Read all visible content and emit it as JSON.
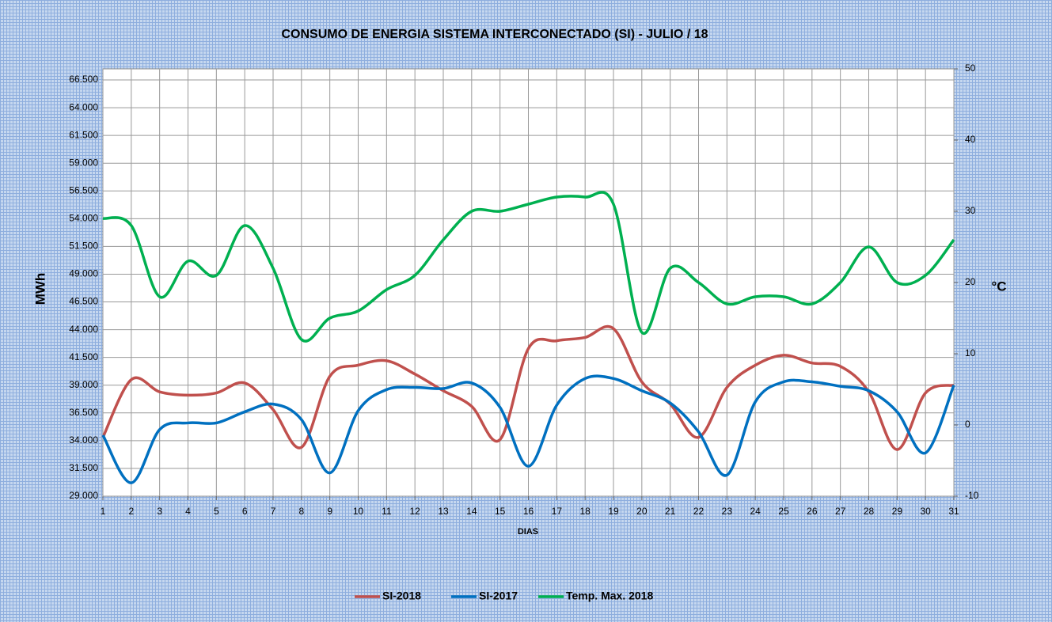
{
  "chart_data": {
    "type": "line",
    "title": "CONSUMO DE ENERGIA SISTEMA INTERCONECTADO (SI) -  JULIO / 18",
    "y_label": "MWh",
    "y2_label": "°C",
    "x_label": "DIAS",
    "categories": [
      "1",
      "2",
      "3",
      "4",
      "5",
      "6",
      "7",
      "8",
      "9",
      "10",
      "11",
      "12",
      "13",
      "14",
      "15",
      "16",
      "17",
      "18",
      "19",
      "20",
      "21",
      "22",
      "23",
      "24",
      "25",
      "26",
      "27",
      "28",
      "29",
      "30",
      "31"
    ],
    "series": [
      {
        "name": "SI-2018",
        "color": "#c0504d",
        "values": [
          34300,
          39500,
          38400,
          38100,
          38300,
          39200,
          36800,
          33400,
          39800,
          40800,
          41200,
          40000,
          38500,
          37100,
          34100,
          42300,
          43000,
          43300,
          44100,
          39300,
          37300,
          34300,
          38800,
          40800,
          41700,
          41000,
          40700,
          38400,
          33200,
          38300,
          39000
        ]
      },
      {
        "name": "SI-2017",
        "color": "#0070c0",
        "values": [
          34500,
          30200,
          35000,
          35600,
          35600,
          36600,
          37300,
          35900,
          31100,
          36700,
          38600,
          38800,
          38700,
          39200,
          37000,
          31700,
          37200,
          39600,
          39600,
          38500,
          37400,
          34800,
          30900,
          37500,
          39300,
          39300,
          38900,
          38500,
          36600,
          32900,
          39000
        ]
      },
      {
        "name": "Temp. Max. 2018",
        "color": "#00b050",
        "axis": "y2",
        "values": [
          29,
          28,
          18,
          23,
          21,
          28,
          22,
          12,
          15,
          16,
          19,
          21,
          26,
          30,
          30,
          31,
          32,
          32,
          31,
          13,
          22,
          20,
          17,
          18,
          18,
          17,
          20,
          25,
          20,
          21,
          26
        ]
      }
    ],
    "ylim": [
      29000,
      67500
    ],
    "yticks": [
      {
        "value": 29000,
        "label": "29.000"
      },
      {
        "value": 31500,
        "label": "31.500"
      },
      {
        "value": 34000,
        "label": "34.000"
      },
      {
        "value": 36500,
        "label": "36.500"
      },
      {
        "value": 39000,
        "label": "39.000"
      },
      {
        "value": 41500,
        "label": "41.500"
      },
      {
        "value": 44000,
        "label": "44.000"
      },
      {
        "value": 46500,
        "label": "46.500"
      },
      {
        "value": 49000,
        "label": "49.000"
      },
      {
        "value": 51500,
        "label": "51.500"
      },
      {
        "value": 54000,
        "label": "54.000"
      },
      {
        "value": 56500,
        "label": "56.500"
      },
      {
        "value": 59000,
        "label": "59.000"
      },
      {
        "value": 61500,
        "label": "61.500"
      },
      {
        "value": 64000,
        "label": "64.000"
      },
      {
        "value": 66500,
        "label": "66.500"
      }
    ],
    "y2lim": [
      -10,
      50
    ],
    "y2ticks": [
      -10,
      0,
      10,
      20,
      30,
      40,
      50
    ],
    "grid": true,
    "legend": "bottom"
  }
}
